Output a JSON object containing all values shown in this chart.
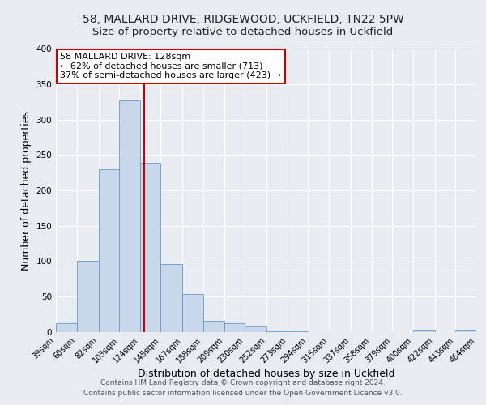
{
  "title": "58, MALLARD DRIVE, RIDGEWOOD, UCKFIELD, TN22 5PW",
  "subtitle": "Size of property relative to detached houses in Uckfield",
  "xlabel": "Distribution of detached houses by size in Uckfield",
  "ylabel": "Number of detached properties",
  "bin_edges": [
    39,
    60,
    82,
    103,
    124,
    145,
    167,
    188,
    209,
    230,
    252,
    273,
    294,
    315,
    337,
    358,
    379,
    400,
    422,
    443,
    464
  ],
  "bin_counts": [
    13,
    101,
    230,
    327,
    239,
    96,
    54,
    16,
    13,
    8,
    1,
    1,
    0,
    0,
    0,
    0,
    0,
    2,
    0,
    2
  ],
  "bar_color": "#c8d8ea",
  "bar_edge_color": "#6699cc",
  "vline_x": 128,
  "vline_color": "#cc0000",
  "annotation_title": "58 MALLARD DRIVE: 128sqm",
  "annotation_line1": "← 62% of detached houses are smaller (713)",
  "annotation_line2": "37% of semi-detached houses are larger (423) →",
  "annotation_box_edge_color": "#cc0000",
  "annotation_box_bg": "#ffffff",
  "ylim": [
    0,
    400
  ],
  "yticks": [
    0,
    50,
    100,
    150,
    200,
    250,
    300,
    350,
    400
  ],
  "bg_color": "#e8ecf0",
  "plot_bg_color": "#e8ecf0",
  "grid_color": "#ffffff",
  "footer_line1": "Contains HM Land Registry data © Crown copyright and database right 2024.",
  "footer_line2": "Contains public sector information licensed under the Open Government Licence v3.0.",
  "title_fontsize": 10,
  "subtitle_fontsize": 9.5,
  "tick_label_fontsize": 7,
  "axis_label_fontsize": 9,
  "footer_fontsize": 6.5
}
